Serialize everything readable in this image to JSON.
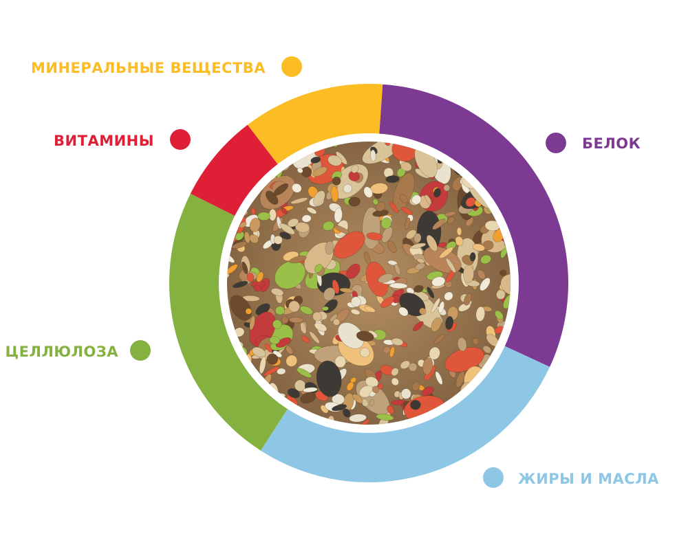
{
  "chart_data": {
    "type": "pie",
    "variant": "donut",
    "center_image": "seed-mix-photo",
    "slices": [
      {
        "label": "БЕЛОК",
        "value": 30.8,
        "color": "#7d3a92"
      },
      {
        "label": "ЖИРЫ И МАСЛА",
        "value": 27.2,
        "color": "#8ec6e6"
      },
      {
        "label": "ЦЕЛЛЮЛОЗА",
        "value": 23.3,
        "color": "#84b13f"
      },
      {
        "label": "ВИТАМИНЫ",
        "value": 7.2,
        "color": "#df1f35"
      },
      {
        "label": "МИНЕРАЛЬНЫЕ ВЕЩЕСТВА",
        "value": 11.5,
        "color": "#fbbc24"
      }
    ]
  }
}
